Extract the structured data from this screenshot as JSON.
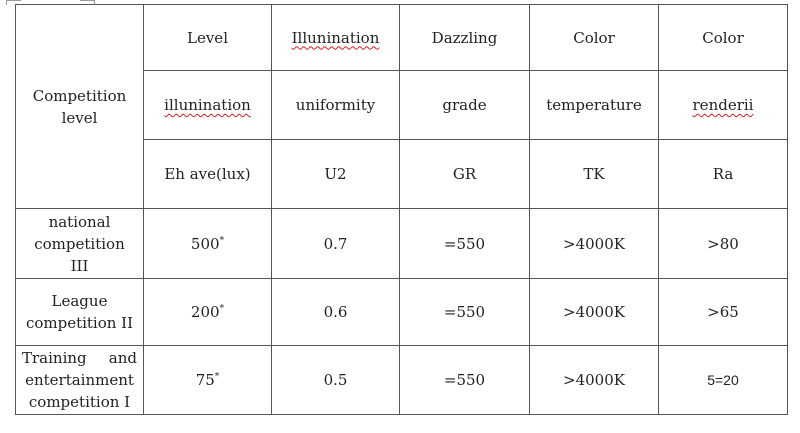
{
  "header": {
    "row1": [
      "Level",
      "Illunination",
      "Dazzling",
      "Color",
      "Color"
    ],
    "row2": [
      "illunination",
      "uniformity",
      "grade",
      "temperature",
      "renderii"
    ],
    "row3": [
      "Eh ave(lux)",
      "U2",
      "GR",
      "TK",
      "Ra"
    ],
    "corner_label": [
      "Competition",
      "level"
    ]
  },
  "rows": [
    {
      "label": [
        "national",
        "competition",
        "III"
      ],
      "eh_ave": "500",
      "eh_ave_mark": "*",
      "u2": "0.7",
      "gr": "=550",
      "tk": ">4000K",
      "ra": ">80"
    },
    {
      "label": [
        "League",
        "competition II"
      ],
      "eh_ave": "200",
      "eh_ave_mark": "*",
      "u2": "0.6",
      "gr": "=550",
      "tk": ">4000K",
      "ra": ">65"
    },
    {
      "label_words": [
        "Training",
        "and"
      ],
      "label": [
        "entertainment",
        "competition I"
      ],
      "eh_ave": "75",
      "eh_ave_mark": "*",
      "u2": "0.5",
      "gr": "=550",
      "tk": ">4000K",
      "ra": "5=20"
    }
  ]
}
